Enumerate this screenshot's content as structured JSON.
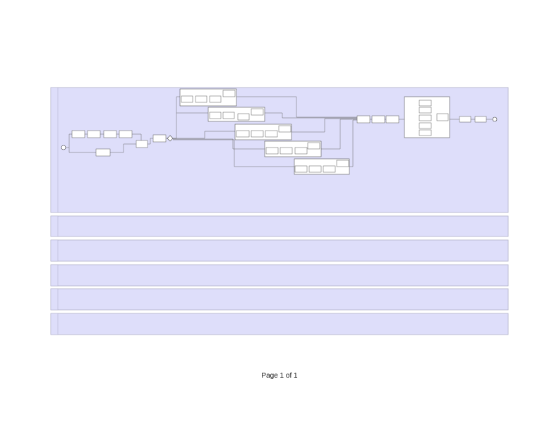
{
  "footer": {
    "page_label": "Page 1 of 1"
  }
}
